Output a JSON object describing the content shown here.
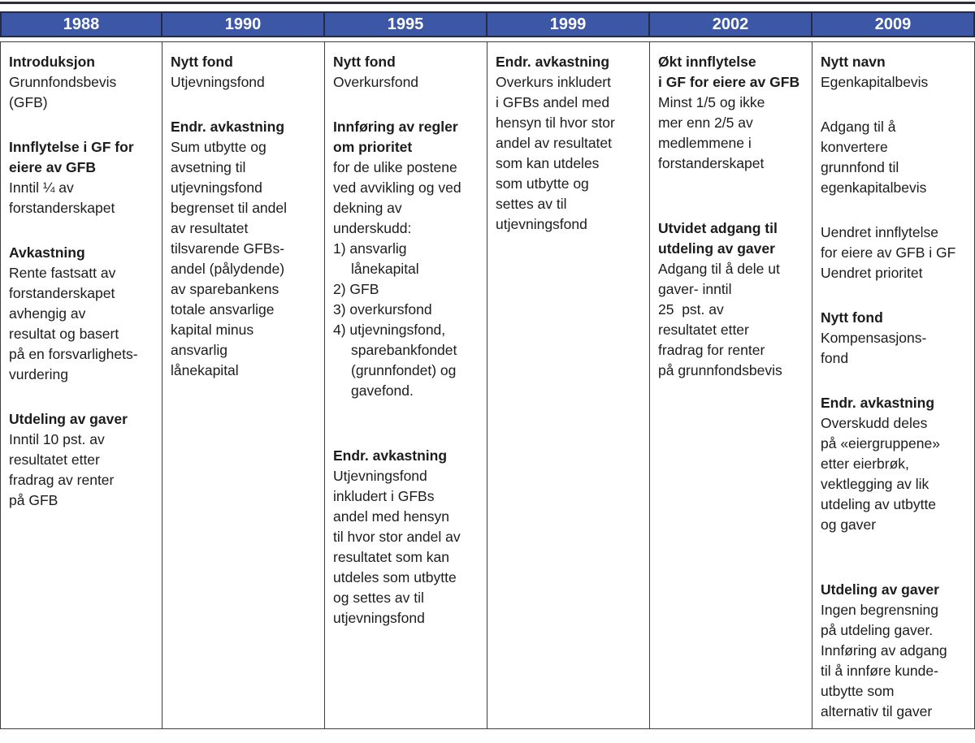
{
  "table": {
    "colors": {
      "header_bg": "#3c57a6",
      "header_text": "#ffffff",
      "header_border": "#252a45",
      "body_border": "#3e3e42",
      "body_text": "#1c1c1c",
      "top_rule": "#2e2e38"
    },
    "columns": [
      {
        "year": "1988",
        "blocks": [
          {
            "title": "Introduksjon",
            "body": "Grunnfondsbevis\n(GFB)"
          },
          {
            "title": "Innflytelse i GF for\neiere av GFB",
            "body": "Inntil ¼ av\nforstanderskapet"
          },
          {
            "title": "Avkastning",
            "body": "Rente fastsatt av\nforstanderskapet\navhengig av\nresultat og basert\npå en forsvarlighets-\nvurdering"
          },
          {
            "title": "Utdeling av gaver",
            "body": "Inntil 10 pst. av\nresultatet etter\nfradrag av renter\npå GFB"
          }
        ]
      },
      {
        "year": "1990",
        "blocks": [
          {
            "title": "Nytt fond",
            "body": "Utjevningsfond"
          },
          {
            "title": "Endr. avkastning",
            "body": "Sum utbytte og\navsetning til\nutjevningsfond\nbegrenset til andel\nav resultatet\ntilsvarende GFBs-\nandel (pålydende)\nav sparebankens\ntotale ansvarlige\nkapital minus\nansvarlig\nlånekapital"
          }
        ]
      },
      {
        "year": "1995",
        "blocks": [
          {
            "title": "Nytt fond",
            "body": "Overkursfond"
          },
          {
            "title": "Innføring av regler\nom prioritet",
            "body": "for de ulike postene\nved avvikling og ved\ndekning av\nunderskudd:",
            "list": [
              "1) ansvarlig\nlånekapital",
              "2) GFB",
              "3) overkursfond",
              "4) utjevningsfond,\nsparebankfondet\n(grunnfondet) og\ngavefond."
            ]
          },
          {
            "title": "Endr. avkastning",
            "gap": "large",
            "body": "Utjevningsfond\ninkludert i GFBs\nandel med hensyn\ntil hvor stor andel av\nresultatet som kan\nutdeles som utbytte\nog settes av til\nutjevningsfond"
          }
        ]
      },
      {
        "year": "1999",
        "blocks": [
          {
            "title": "Endr. avkastning",
            "body": "Overkurs inkludert\ni GFBs andel med\nhensyn til hvor stor\nandel av resultatet\nsom kan utdeles\nsom utbytte og\nsettes av til\nutjevningsfond"
          }
        ]
      },
      {
        "year": "2002",
        "blocks": [
          {
            "title": "Økt innflytelse\ni GF for eiere av GFB",
            "body": "Minst 1/5 og ikke\nmer enn 2/5 av\nmedlemmene i\nforstanderskapet"
          },
          {
            "title": "Utvidet adgang til\nutdeling av gaver",
            "gap": "large",
            "body": "Adgang til å dele ut\ngaver- inntil\n25  pst. av\nresultatet etter\nfradrag for renter\npå grunnfondsbevis"
          }
        ]
      },
      {
        "year": "2009",
        "blocks": [
          {
            "title": "Nytt navn",
            "body": "Egenkapitalbevis"
          },
          {
            "body": "Adgang til å\nkonvertere\ngrunnfond til\negenkapitalbevis"
          },
          {
            "body": "Uendret innflytelse\nfor eiere av GFB i GF\nUendret prioritet"
          },
          {
            "title": "Nytt fond",
            "body": "Kompensasjons-\nfond"
          },
          {
            "title": "Endr. avkastning",
            "body": "Overskudd deles\npå «eiergruppene»\netter eierbrøk,\nvektlegging av lik\nutdeling av utbytte\nog gaver"
          },
          {
            "title": "Utdeling av gaver",
            "gap": "large",
            "body": "Ingen begrensning\npå utdeling gaver.\nInnføring av adgang\ntil å innføre kunde-\nutbytte som\nalternativ til gaver"
          }
        ]
      }
    ]
  }
}
